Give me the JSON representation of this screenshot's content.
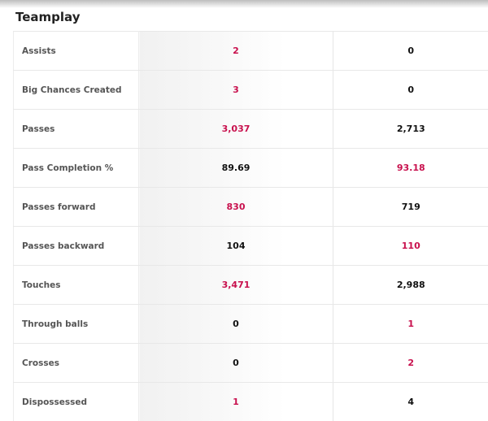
{
  "section": {
    "title": "Teamplay"
  },
  "rows": [
    {
      "label": "Assists",
      "home": "2",
      "away": "0",
      "leader": "home"
    },
    {
      "label": "Big Chances Created",
      "home": "3",
      "away": "0",
      "leader": "home"
    },
    {
      "label": "Passes",
      "home": "3,037",
      "away": "2,713",
      "leader": "home"
    },
    {
      "label": "Pass Completion %",
      "home": "89.69",
      "away": "93.18",
      "leader": "away"
    },
    {
      "label": "Passes forward",
      "home": "830",
      "away": "719",
      "leader": "home"
    },
    {
      "label": "Passes backward",
      "home": "104",
      "away": "110",
      "leader": "away"
    },
    {
      "label": "Touches",
      "home": "3,471",
      "away": "2,988",
      "leader": "home"
    },
    {
      "label": "Through balls",
      "home": "0",
      "away": "1",
      "leader": "away"
    },
    {
      "label": "Crosses",
      "home": "0",
      "away": "2",
      "leader": "away"
    },
    {
      "label": "Dispossessed",
      "home": "1",
      "away": "4",
      "leader": "home"
    }
  ],
  "colors": {
    "leader_value": "#c8104d",
    "normal_value": "#111111",
    "label_text": "#555555"
  }
}
